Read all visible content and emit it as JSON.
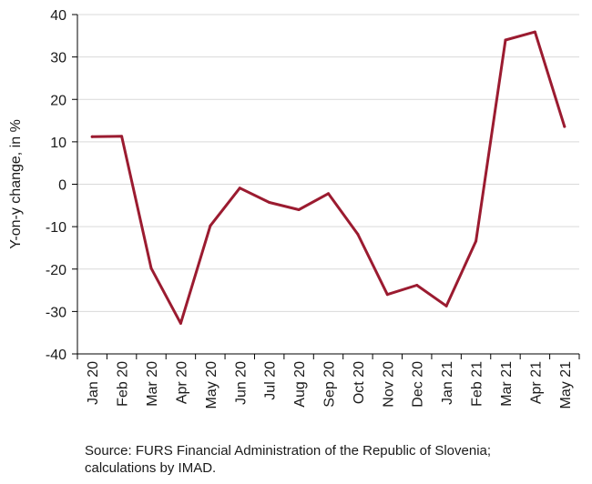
{
  "chart_data": {
    "type": "line",
    "categories": [
      "Jan 20",
      "Feb 20",
      "Mar 20",
      "Apr 20",
      "May 20",
      "Jun 20",
      "Jul 20",
      "Aug 20",
      "Sep 20",
      "Oct 20",
      "Nov 20",
      "Dec 20",
      "Jan 21",
      "Feb 21",
      "Mar 21",
      "Apr 21",
      "May 21"
    ],
    "series": [
      {
        "values": [
          11.2,
          11.3,
          -19.8,
          -32.8,
          -9.8,
          -0.9,
          -4.3,
          -6.0,
          -2.2,
          -11.8,
          -26.0,
          -23.8,
          -28.7,
          -13.4,
          34.0,
          35.9,
          13.6
        ],
        "color": "#9b1b30"
      }
    ],
    "ylabel": "Y-on-y change, in %",
    "ylim": [
      -40,
      40
    ],
    "yticks": [
      -40,
      -30,
      -20,
      -10,
      0,
      10,
      20,
      30,
      40
    ],
    "grid": true
  },
  "source": "Source: FURS Financial Administration of the Republic of Slovenia; calculations by IMAD."
}
